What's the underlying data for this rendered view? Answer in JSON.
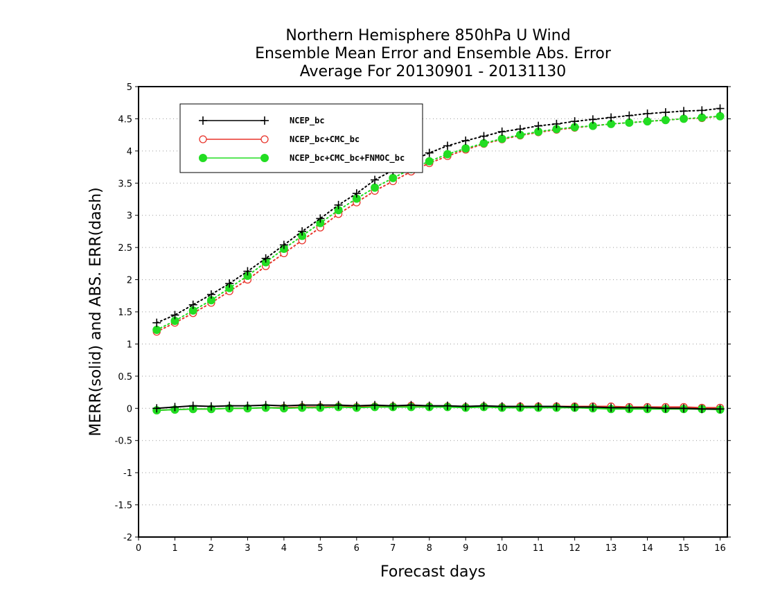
{
  "chart_data": {
    "type": "line",
    "title": [
      "Northern Hemisphere 850hPa U Wind",
      "Ensemble Mean Error and Ensemble Abs. Error",
      "Average For 20130901 - 20131130"
    ],
    "xlabel": "Forecast days",
    "ylabel": "MERR(solid) and ABS. ERR(dash)",
    "xlim": [
      0,
      16.2
    ],
    "ylim": [
      -2,
      5
    ],
    "xticks": [
      0,
      1,
      2,
      3,
      4,
      5,
      6,
      7,
      8,
      9,
      10,
      11,
      12,
      13,
      14,
      15,
      16
    ],
    "yticks": [
      -2,
      -1.5,
      -1,
      -0.5,
      0,
      0.5,
      1,
      1.5,
      2,
      2.5,
      3,
      3.5,
      4,
      4.5,
      5
    ],
    "ytick_labels": [
      "-2",
      "-1.5",
      "-1",
      "-0.5",
      "0",
      "0.5",
      "1",
      "1.5",
      "2",
      "2.5",
      "3",
      "3.5",
      "4",
      "4.5",
      "5"
    ],
    "grid": "horizontal dotted",
    "legend_position": "top-left",
    "x": [
      0.5,
      1,
      1.5,
      2,
      2.5,
      3,
      3.5,
      4,
      4.5,
      5,
      5.5,
      6,
      6.5,
      7,
      7.5,
      8,
      8.5,
      9,
      9.5,
      10,
      10.5,
      11,
      11.5,
      12,
      12.5,
      13,
      13.5,
      14,
      14.5,
      15,
      15.5,
      16
    ],
    "series": [
      {
        "name": "NCEP_bc",
        "color": "#000000",
        "marker": "plus",
        "abs_err": [
          1.33,
          1.45,
          1.61,
          1.77,
          1.94,
          2.13,
          2.33,
          2.54,
          2.75,
          2.95,
          3.16,
          3.34,
          3.55,
          3.7,
          3.84,
          3.97,
          4.08,
          4.16,
          4.23,
          4.3,
          4.34,
          4.39,
          4.42,
          4.46,
          4.49,
          4.52,
          4.55,
          4.58,
          4.6,
          4.62,
          4.63,
          4.66
        ],
        "mean_err": [
          0.0,
          0.02,
          0.04,
          0.03,
          0.04,
          0.04,
          0.05,
          0.04,
          0.05,
          0.05,
          0.05,
          0.04,
          0.05,
          0.04,
          0.05,
          0.04,
          0.04,
          0.03,
          0.04,
          0.03,
          0.03,
          0.03,
          0.03,
          0.02,
          0.02,
          0.01,
          0.01,
          0.01,
          0.0,
          0.0,
          -0.01,
          -0.01
        ]
      },
      {
        "name": "NCEP_bc+CMC_bc",
        "color": "#e8332a",
        "marker": "circle",
        "abs_err": [
          1.19,
          1.33,
          1.48,
          1.64,
          1.82,
          2.0,
          2.21,
          2.41,
          2.61,
          2.81,
          3.02,
          3.2,
          3.38,
          3.53,
          3.68,
          3.81,
          3.92,
          4.02,
          4.11,
          4.18,
          4.24,
          4.29,
          4.33,
          4.36,
          4.39,
          4.42,
          4.44,
          4.46,
          4.48,
          4.5,
          4.51,
          4.54
        ],
        "mean_err": [
          -0.03,
          -0.02,
          -0.01,
          -0.01,
          0.0,
          0.0,
          0.01,
          0.01,
          0.02,
          0.02,
          0.03,
          0.02,
          0.03,
          0.03,
          0.04,
          0.03,
          0.03,
          0.02,
          0.03,
          0.02,
          0.03,
          0.03,
          0.03,
          0.03,
          0.03,
          0.03,
          0.02,
          0.02,
          0.02,
          0.02,
          0.01,
          0.01
        ]
      },
      {
        "name": "NCEP_bc+CMC_bc+FNMOC_bc",
        "color": "#22dd22",
        "marker": "filled-circle",
        "abs_err": [
          1.22,
          1.36,
          1.52,
          1.68,
          1.87,
          2.06,
          2.27,
          2.48,
          2.68,
          2.88,
          3.08,
          3.26,
          3.43,
          3.58,
          3.72,
          3.84,
          3.95,
          4.04,
          4.12,
          4.19,
          4.25,
          4.3,
          4.34,
          4.37,
          4.39,
          4.42,
          4.44,
          4.46,
          4.48,
          4.5,
          4.52,
          4.54
        ],
        "mean_err": [
          -0.03,
          -0.02,
          -0.01,
          -0.01,
          0.0,
          0.0,
          0.01,
          0.0,
          0.01,
          0.01,
          0.02,
          0.01,
          0.02,
          0.02,
          0.02,
          0.02,
          0.02,
          0.01,
          0.02,
          0.01,
          0.01,
          0.01,
          0.01,
          0.01,
          0.0,
          -0.01,
          -0.01,
          -0.01,
          -0.01,
          -0.01,
          -0.01,
          -0.02
        ]
      }
    ]
  }
}
